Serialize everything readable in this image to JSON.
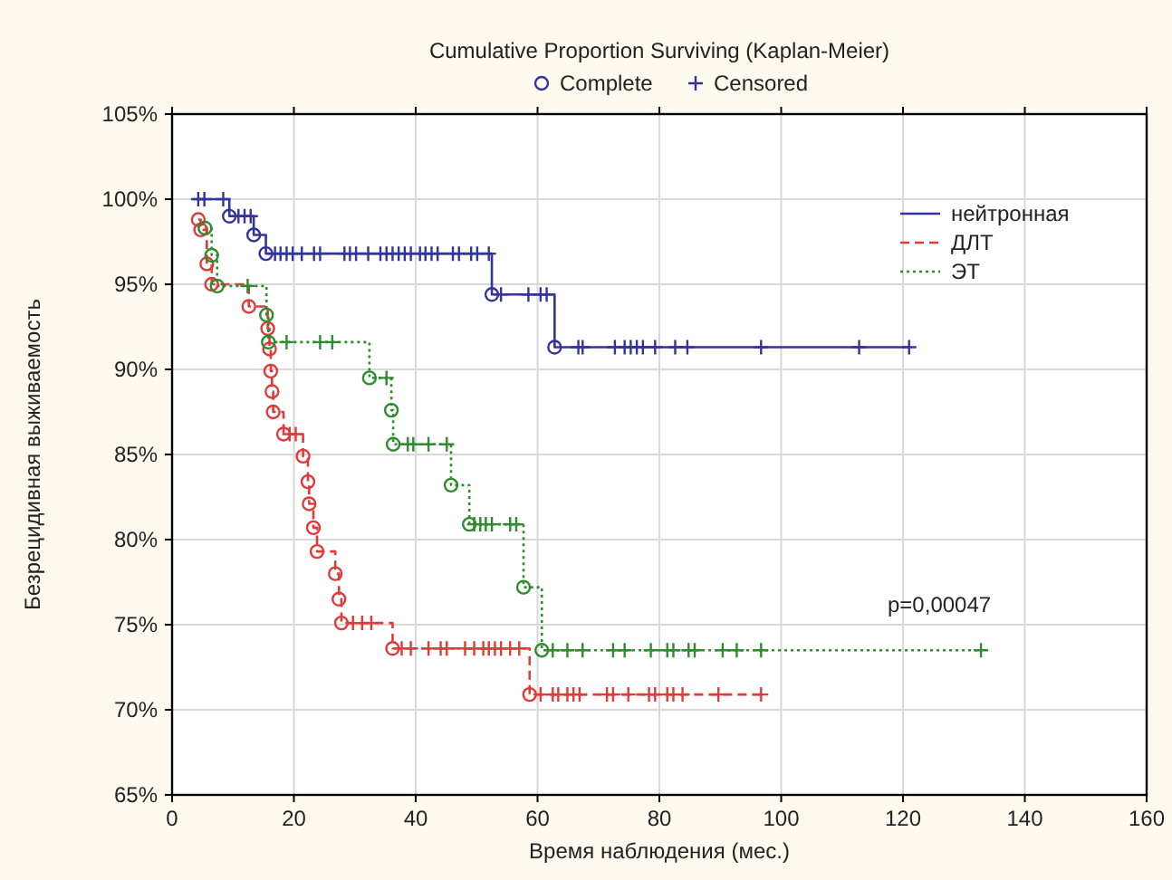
{
  "chart_data": {
    "type": "step",
    "title": "Cumulative Proportion Surviving (Kaplan-Meier)",
    "xlabel": "Время наблюдения (мес.)",
    "ylabel": "Безрецидивная выживаемость",
    "xlim": [
      0,
      160
    ],
    "xticks": [
      0,
      20,
      40,
      60,
      80,
      100,
      120,
      140,
      160
    ],
    "ylim": [
      65,
      105
    ],
    "yticks": [
      {
        "value": 65,
        "label": "65%"
      },
      {
        "value": 70,
        "label": "70%"
      },
      {
        "value": 75,
        "label": "75%"
      },
      {
        "value": 80,
        "label": "80%"
      },
      {
        "value": 85,
        "label": "85%"
      },
      {
        "value": 90,
        "label": "90%"
      },
      {
        "value": 95,
        "label": "95%"
      },
      {
        "value": 100,
        "label": "100%"
      },
      {
        "value": 105,
        "label": "105%"
      }
    ],
    "grid": true,
    "legend": "top right",
    "annotations": [
      "p=0,00047"
    ],
    "series": [
      {
        "name": "нейтронная",
        "color": "#34349a",
        "line_style": "solid",
        "marker": "none",
        "x": [
          3.5,
          9.4,
          13.4,
          15.4,
          52.5,
          62.8,
          121
        ],
        "values": [
          100,
          99.0,
          97.9,
          96.8,
          94.4,
          91.3,
          91.3
        ]
      },
      {
        "name": "ДЛТ",
        "color": "#e03a3a",
        "line_style": "dashed",
        "marker": "none",
        "x": [
          4.3,
          4.7,
          5.7,
          6.5,
          12.6,
          15.7,
          16.0,
          16.2,
          16.4,
          16.6,
          18.3,
          21.5,
          22.3,
          22.5,
          23.2,
          23.8,
          26.8,
          27.4,
          27.8,
          36.2,
          58.7,
          96.7
        ],
        "values": [
          98.8,
          98.2,
          96.2,
          95.0,
          93.7,
          92.4,
          91.2,
          89.9,
          88.7,
          87.5,
          86.2,
          84.9,
          83.4,
          82.1,
          80.7,
          79.3,
          78.0,
          76.5,
          75.1,
          73.6,
          70.9,
          70.9
        ]
      },
      {
        "name": "ЭТ",
        "color": "#2e8b2e",
        "line_style": "dotted",
        "marker": "none",
        "x": [
          5.4,
          6.5,
          7.4,
          15.5,
          15.8,
          32.4,
          36.0,
          36.3,
          45.8,
          48.8,
          57.7,
          60.7,
          132.8
        ],
        "values": [
          98.3,
          96.7,
          94.9,
          93.2,
          91.6,
          89.5,
          87.6,
          85.6,
          83.2,
          80.9,
          77.2,
          73.5,
          73.5
        ]
      },
      {
        "name": "Complete",
        "type": "scatter",
        "marker": "circle",
        "color": "#34349a",
        "x": [
          9.4,
          13.4,
          15.4,
          52.5,
          62.8,
          4.3,
          4.7,
          5.7,
          6.5,
          12.6,
          15.7,
          16.0,
          16.2,
          16.4,
          16.6,
          18.3,
          21.5,
          22.3,
          22.5,
          23.2,
          23.8,
          26.8,
          27.4,
          27.8,
          36.2,
          58.7,
          5.4,
          6.5,
          7.4,
          15.5,
          15.8,
          32.4,
          36.0,
          36.3,
          45.8,
          48.8,
          57.7,
          60.7
        ],
        "values": [
          99.0,
          97.9,
          96.8,
          94.4,
          91.3,
          98.8,
          98.2,
          96.2,
          95.0,
          93.7,
          92.4,
          91.2,
          89.9,
          88.7,
          87.5,
          86.2,
          84.9,
          83.4,
          82.1,
          80.7,
          79.3,
          78.0,
          76.5,
          75.1,
          73.6,
          70.9,
          98.3,
          96.7,
          94.9,
          93.2,
          91.6,
          89.5,
          87.6,
          85.6,
          83.2,
          80.9,
          77.2,
          73.5
        ],
        "colors": [
          "#34349a",
          "#34349a",
          "#34349a",
          "#34349a",
          "#34349a",
          "#e03a3a",
          "#e03a3a",
          "#e03a3a",
          "#e03a3a",
          "#e03a3a",
          "#e03a3a",
          "#e03a3a",
          "#e03a3a",
          "#e03a3a",
          "#e03a3a",
          "#e03a3a",
          "#e03a3a",
          "#e03a3a",
          "#e03a3a",
          "#e03a3a",
          "#e03a3a",
          "#e03a3a",
          "#e03a3a",
          "#e03a3a",
          "#e03a3a",
          "#e03a3a",
          "#2e8b2e",
          "#2e8b2e",
          "#2e8b2e",
          "#2e8b2e",
          "#2e8b2e",
          "#2e8b2e",
          "#2e8b2e",
          "#2e8b2e",
          "#2e8b2e",
          "#2e8b2e",
          "#2e8b2e",
          "#2e8b2e"
        ]
      },
      {
        "name": "Censored",
        "type": "scatter",
        "marker": "cross",
        "color": "#34349a",
        "x": [
          4.3,
          5.3,
          8.4,
          10.9,
          11.9,
          12.9,
          16.9,
          17.8,
          18.8,
          19.8,
          21.3,
          23.3,
          24.3,
          28.3,
          29.2,
          30.2,
          32.2,
          34.2,
          35.2,
          36.2,
          37.2,
          38.2,
          39.2,
          40.7,
          41.6,
          42.6,
          43.6,
          46.1,
          47.1,
          49.1,
          50.1,
          52.0,
          54.0,
          58.5,
          60.5,
          61.5,
          66.7,
          67.4,
          72.7,
          74.3,
          75.3,
          76.3,
          77.3,
          79.3,
          82.6,
          84.6,
          96.7,
          112.8,
          121,
          19.3,
          20.3,
          29.7,
          31.2,
          32.7,
          37.7,
          39.2,
          42.1,
          44.1,
          45.1,
          48.1,
          49.6,
          51.1,
          52.0,
          53.0,
          54.0,
          55.5,
          57.0,
          60.5,
          62.5,
          63.4,
          64.9,
          65.9,
          66.9,
          71.4,
          72.4,
          74.9,
          78.3,
          79.3,
          81.3,
          82.3,
          83.8,
          89.7,
          96.7,
          12.4,
          18.8,
          24.3,
          26.3,
          35.2,
          38.7,
          39.6,
          42.1,
          45.1,
          49.6,
          50.6,
          51.5,
          52.5,
          55.5,
          56.5,
          62.5,
          64.9,
          67.4,
          72.4,
          74.3,
          78.6,
          81.3,
          82.3,
          84.8,
          85.8,
          90.4,
          92.7,
          96.7,
          132.8
        ],
        "values": [
          100,
          100,
          100,
          99.0,
          99.0,
          99.0,
          96.8,
          96.8,
          96.8,
          96.8,
          96.8,
          96.8,
          96.8,
          96.8,
          96.8,
          96.8,
          96.8,
          96.8,
          96.8,
          96.8,
          96.8,
          96.8,
          96.8,
          96.8,
          96.8,
          96.8,
          96.8,
          96.8,
          96.8,
          96.8,
          96.8,
          96.8,
          94.4,
          94.4,
          94.4,
          94.4,
          91.3,
          91.3,
          91.3,
          91.3,
          91.3,
          91.3,
          91.3,
          91.3,
          91.3,
          91.3,
          91.3,
          91.3,
          91.3,
          86.2,
          86.2,
          75.1,
          75.1,
          75.1,
          73.6,
          73.6,
          73.6,
          73.6,
          73.6,
          73.6,
          73.6,
          73.6,
          73.6,
          73.6,
          73.6,
          73.6,
          73.6,
          70.9,
          70.9,
          70.9,
          70.9,
          70.9,
          70.9,
          70.9,
          70.9,
          70.9,
          70.9,
          70.9,
          70.9,
          70.9,
          70.9,
          70.9,
          70.9,
          94.9,
          91.6,
          91.6,
          91.6,
          89.5,
          85.6,
          85.6,
          85.6,
          85.6,
          80.9,
          80.9,
          80.9,
          80.9,
          80.9,
          80.9,
          73.5,
          73.5,
          73.5,
          73.5,
          73.5,
          73.5,
          73.5,
          73.5,
          73.5,
          73.5,
          73.5,
          73.5,
          73.5,
          73.5
        ],
        "colors": [
          "#34349a",
          "#34349a",
          "#34349a",
          "#34349a",
          "#34349a",
          "#34349a",
          "#34349a",
          "#34349a",
          "#34349a",
          "#34349a",
          "#34349a",
          "#34349a",
          "#34349a",
          "#34349a",
          "#34349a",
          "#34349a",
          "#34349a",
          "#34349a",
          "#34349a",
          "#34349a",
          "#34349a",
          "#34349a",
          "#34349a",
          "#34349a",
          "#34349a",
          "#34349a",
          "#34349a",
          "#34349a",
          "#34349a",
          "#34349a",
          "#34349a",
          "#34349a",
          "#34349a",
          "#34349a",
          "#34349a",
          "#34349a",
          "#34349a",
          "#34349a",
          "#34349a",
          "#34349a",
          "#34349a",
          "#34349a",
          "#34349a",
          "#34349a",
          "#34349a",
          "#34349a",
          "#34349a",
          "#34349a",
          "#34349a",
          "#e03a3a",
          "#e03a3a",
          "#e03a3a",
          "#e03a3a",
          "#e03a3a",
          "#e03a3a",
          "#e03a3a",
          "#e03a3a",
          "#e03a3a",
          "#e03a3a",
          "#e03a3a",
          "#e03a3a",
          "#e03a3a",
          "#e03a3a",
          "#e03a3a",
          "#e03a3a",
          "#e03a3a",
          "#e03a3a",
          "#e03a3a",
          "#e03a3a",
          "#e03a3a",
          "#e03a3a",
          "#e03a3a",
          "#e03a3a",
          "#e03a3a",
          "#e03a3a",
          "#e03a3a",
          "#e03a3a",
          "#e03a3a",
          "#e03a3a",
          "#e03a3a",
          "#e03a3a",
          "#e03a3a",
          "#e03a3a",
          "#2e8b2e",
          "#2e8b2e",
          "#2e8b2e",
          "#2e8b2e",
          "#2e8b2e",
          "#2e8b2e",
          "#2e8b2e",
          "#2e8b2e",
          "#2e8b2e",
          "#2e8b2e",
          "#2e8b2e",
          "#2e8b2e",
          "#2e8b2e",
          "#2e8b2e",
          "#2e8b2e",
          "#2e8b2e",
          "#2e8b2e",
          "#2e8b2e",
          "#2e8b2e",
          "#2e8b2e",
          "#2e8b2e",
          "#2e8b2e",
          "#2e8b2e",
          "#2e8b2e",
          "#2e8b2e",
          "#2e8b2e",
          "#2e8b2e",
          "#2e8b2e",
          "#2e8b2e"
        ]
      }
    ]
  }
}
